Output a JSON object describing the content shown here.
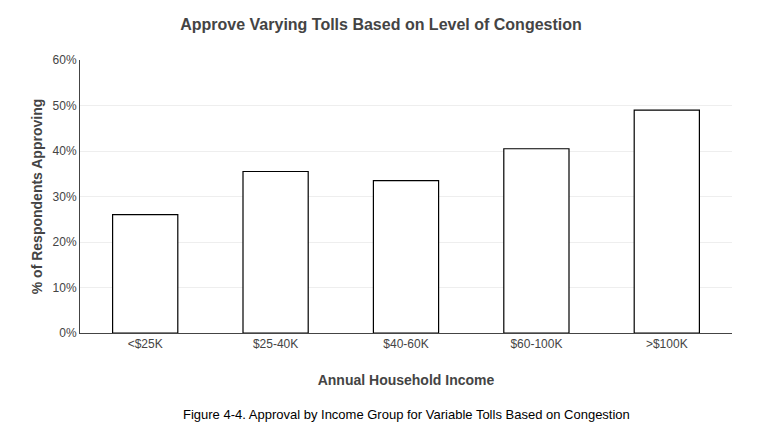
{
  "chart_data": {
    "type": "bar",
    "title": "Approve Varying Tolls Based on Level of Congestion",
    "xlabel": "Annual Household Income",
    "ylabel": "% of Respondents Approving",
    "annotations": [
      "Figure 4-4. Approval by Income Group for Variable Tolls Based on Congestion"
    ],
    "categories": [
      "<$25K",
      "$25-40K",
      "$40-60K",
      "$60-100K",
      ">$100K"
    ],
    "values": [
      0.26,
      0.355,
      0.335,
      0.405,
      0.49
    ],
    "color": "#ffffff",
    "ylim": [
      0,
      0.6
    ],
    "yticks": [
      {
        "value": 0.0,
        "label": "0%"
      },
      {
        "value": 0.1,
        "label": "10%"
      },
      {
        "value": 0.2,
        "label": "20%"
      },
      {
        "value": 0.3,
        "label": "30%"
      },
      {
        "value": 0.4,
        "label": "40%"
      },
      {
        "value": 0.5,
        "label": "50%"
      },
      {
        "value": 0.6,
        "label": "60%"
      }
    ],
    "grid": true
  }
}
